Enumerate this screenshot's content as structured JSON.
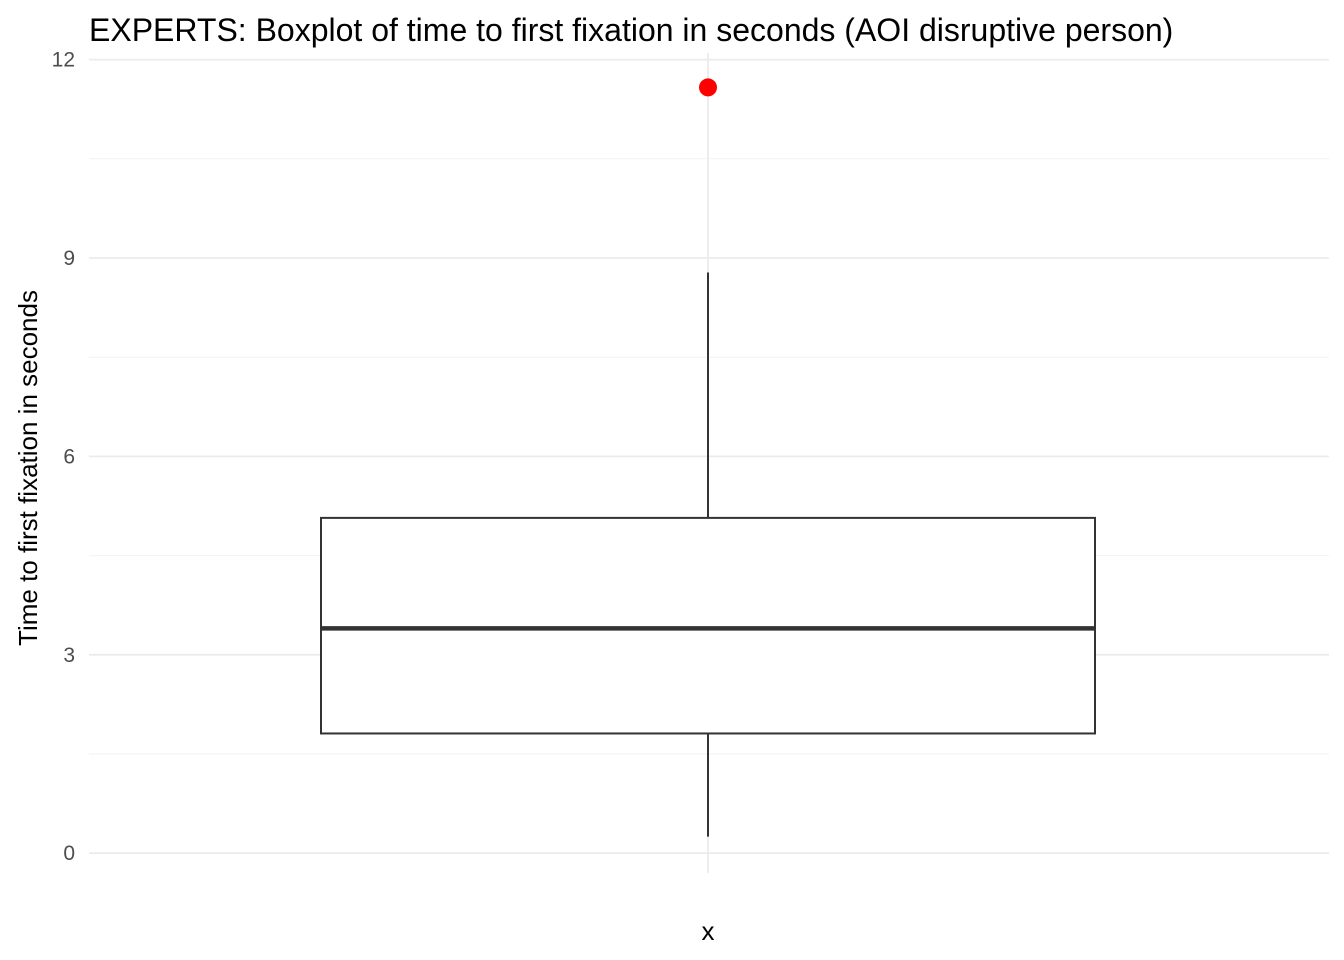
{
  "chart_data": {
    "type": "boxplot",
    "title": "EXPERTS: Boxplot of time to first fixation in seconds (AOI disruptive person)",
    "xlabel": "x",
    "ylabel": "Time to first fixation in seconds",
    "categories": [
      ""
    ],
    "ylim": [
      -0.3,
      12.1
    ],
    "yticks": [
      0,
      3,
      6,
      9,
      12
    ],
    "grid": true,
    "boxes": [
      {
        "category": "",
        "whisker_low": 0.25,
        "q1": 1.81,
        "median": 3.4,
        "q3": 5.07,
        "whisker_high": 8.78,
        "outliers": [
          11.58
        ]
      }
    ],
    "colors": {
      "outlier": "#ff0000",
      "box_stroke": "#333333",
      "box_fill": "#ffffff",
      "grid": "#ebebeb"
    }
  }
}
